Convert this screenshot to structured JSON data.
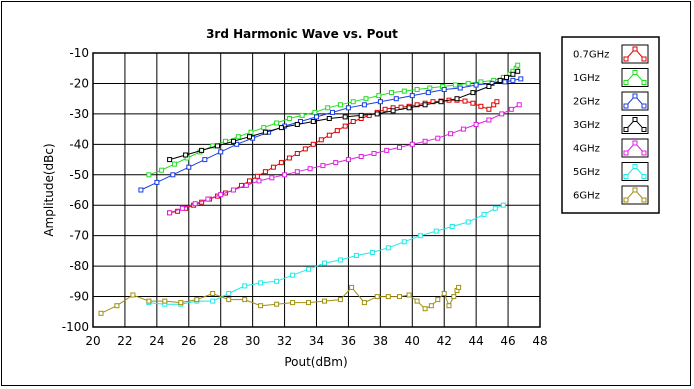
{
  "chart_data": {
    "type": "line",
    "title": "3rd Harmonic Wave vs. Pout",
    "xlabel": "Pout(dBm)",
    "ylabel": "Amplitude(dBc)",
    "xlim": [
      20,
      48
    ],
    "ylim": [
      -100,
      -10
    ],
    "xticks": [
      20,
      22,
      24,
      26,
      28,
      30,
      32,
      34,
      36,
      38,
      40,
      42,
      44,
      46,
      48
    ],
    "yticks": [
      -10,
      -20,
      -30,
      -40,
      -50,
      -60,
      -70,
      -80,
      -90,
      -100
    ],
    "grid": true,
    "legend_position": "right",
    "series": [
      {
        "name": "0.7GHz",
        "color": "#e00000",
        "x": [
          24.8,
          25.3,
          25.8,
          26.3,
          26.8,
          27.3,
          27.8,
          28.3,
          28.8,
          29.3,
          29.8,
          30.3,
          30.8,
          31.3,
          31.8,
          32.3,
          32.8,
          33.3,
          33.8,
          34.3,
          34.8,
          35.3,
          35.8,
          36.3,
          36.8,
          37.3,
          37.8,
          38.3,
          38.8,
          39.3,
          39.8,
          40.3,
          40.8,
          41.3,
          41.8,
          42.3,
          42.8,
          43.3,
          43.8,
          44.3,
          44.8,
          45.1,
          45.3
        ],
        "y": [
          -62.5,
          -62,
          -61,
          -60,
          -59,
          -58,
          -57,
          -56,
          -55,
          -53.5,
          -52,
          -50.5,
          -49,
          -47.5,
          -46,
          -44.5,
          -43,
          -41.5,
          -40,
          -38.5,
          -37,
          -35.5,
          -34,
          -32.5,
          -31.5,
          -30.5,
          -29.5,
          -28.5,
          -28,
          -27.8,
          -27.5,
          -27,
          -26.5,
          -26,
          -25.8,
          -25.5,
          -25.5,
          -25.8,
          -26.5,
          -27.5,
          -28.5,
          -27,
          -26
        ]
      },
      {
        "name": "1GHz",
        "color": "#22dd22",
        "x": [
          23.5,
          24.3,
          25.1,
          25.9,
          26.7,
          27.5,
          28.3,
          29.1,
          29.9,
          30.7,
          31.5,
          32.3,
          33.1,
          33.9,
          34.7,
          35.5,
          36.3,
          37.1,
          37.9,
          38.7,
          39.5,
          40.3,
          41.1,
          41.9,
          42.7,
          43.5,
          44.3,
          45.1,
          45.7,
          46.1,
          46.3,
          46.5,
          46.6
        ],
        "y": [
          -50,
          -48.5,
          -46.5,
          -44.5,
          -42.5,
          -40.5,
          -39,
          -37.5,
          -36,
          -34.5,
          -33,
          -31.5,
          -30.5,
          -29.5,
          -28,
          -27,
          -26,
          -25,
          -24,
          -23,
          -22.5,
          -22,
          -21.5,
          -21,
          -20.5,
          -20,
          -19.5,
          -19,
          -18,
          -17,
          -16,
          -15,
          -14
        ]
      },
      {
        "name": "2GHz",
        "color": "#1a3ee0",
        "x": [
          23,
          24,
          25,
          26,
          27,
          28,
          29,
          30,
          31,
          32,
          33,
          34,
          35,
          36,
          37,
          38,
          39,
          40,
          41,
          42,
          43,
          44,
          45,
          45.8,
          46.3,
          46.8
        ],
        "y": [
          -55,
          -52.5,
          -50,
          -47.5,
          -45,
          -42.5,
          -40,
          -38,
          -36,
          -34,
          -32.5,
          -31,
          -29.5,
          -28,
          -27,
          -26,
          -25,
          -24,
          -23,
          -22,
          -21.5,
          -20.5,
          -20,
          -19.5,
          -19,
          -18.5
        ]
      },
      {
        "name": "3GHz",
        "color": "#000000",
        "x": [
          24.8,
          25.8,
          26.8,
          27.8,
          28.8,
          29.8,
          30.8,
          31.8,
          32.8,
          33.8,
          34.8,
          35.8,
          36.8,
          37.8,
          38.8,
          39.8,
          40.8,
          41.8,
          42.8,
          43.8,
          44.8,
          45.5,
          45.9,
          46.3,
          46.6
        ],
        "y": [
          -45,
          -43.5,
          -42,
          -40.5,
          -39,
          -37.5,
          -36,
          -34.5,
          -33.5,
          -32.5,
          -31.5,
          -31,
          -30.5,
          -30,
          -29,
          -28,
          -27,
          -26,
          -25,
          -23,
          -21,
          -19,
          -18,
          -17,
          -16
        ]
      },
      {
        "name": "4GHz",
        "color": "#e020e0",
        "x": [
          24.8,
          25.6,
          26.4,
          27.2,
          28,
          28.8,
          29.6,
          30.4,
          31.2,
          32,
          32.8,
          33.6,
          34.4,
          35.2,
          36,
          36.8,
          37.6,
          38.4,
          39.2,
          40,
          40.8,
          41.6,
          42.4,
          43.2,
          44,
          44.8,
          45.6,
          46.2,
          46.7
        ],
        "y": [
          -62.5,
          -61,
          -59.5,
          -58,
          -56.5,
          -55,
          -53.5,
          -52,
          -51,
          -50,
          -49,
          -48,
          -47,
          -46,
          -45,
          -44,
          -43,
          -42,
          -41,
          -40,
          -39,
          -38,
          -36.5,
          -35,
          -33.5,
          -32,
          -30,
          -28.5,
          -27
        ]
      },
      {
        "name": "5GHz",
        "color": "#22e8e8",
        "x": [
          23.5,
          24.5,
          25.5,
          26.5,
          27.5,
          28.5,
          29.5,
          30.5,
          31.5,
          32.5,
          33.5,
          34.5,
          35.5,
          36.5,
          37.5,
          38.5,
          39.5,
          40.5,
          41.5,
          42.5,
          43.5,
          44.5,
          45.2,
          45.7
        ],
        "y": [
          -92,
          -92.5,
          -92.5,
          -91.5,
          -91.5,
          -89,
          -86.5,
          -85.5,
          -85,
          -83,
          -81,
          -79,
          -78,
          -76.5,
          -75.5,
          -74,
          -72,
          -70,
          -68.5,
          -67,
          -65.5,
          -63,
          -61,
          -60
        ]
      },
      {
        "name": "6GHz",
        "color": "#a09010",
        "x": [
          20.5,
          21.5,
          22.5,
          23.5,
          24.5,
          25.5,
          26.5,
          27.5,
          28.5,
          29.5,
          30.5,
          31.5,
          32.5,
          33.5,
          34.5,
          35.5,
          36.2,
          37,
          37.8,
          38.5,
          39.2,
          39.8,
          40.3,
          40.8,
          41.2,
          41.6,
          42,
          42.3,
          42.6,
          42.8,
          42.9
        ],
        "y": [
          -95.5,
          -93,
          -89.5,
          -91.5,
          -91.5,
          -92,
          -91,
          -89,
          -91,
          -91,
          -93,
          -92.5,
          -92,
          -92,
          -91.5,
          -91,
          -87,
          -92,
          -90,
          -90,
          -90,
          -89.5,
          -91.5,
          -94,
          -93,
          -91,
          -89,
          -93,
          -90,
          -88,
          -87
        ]
      }
    ]
  }
}
